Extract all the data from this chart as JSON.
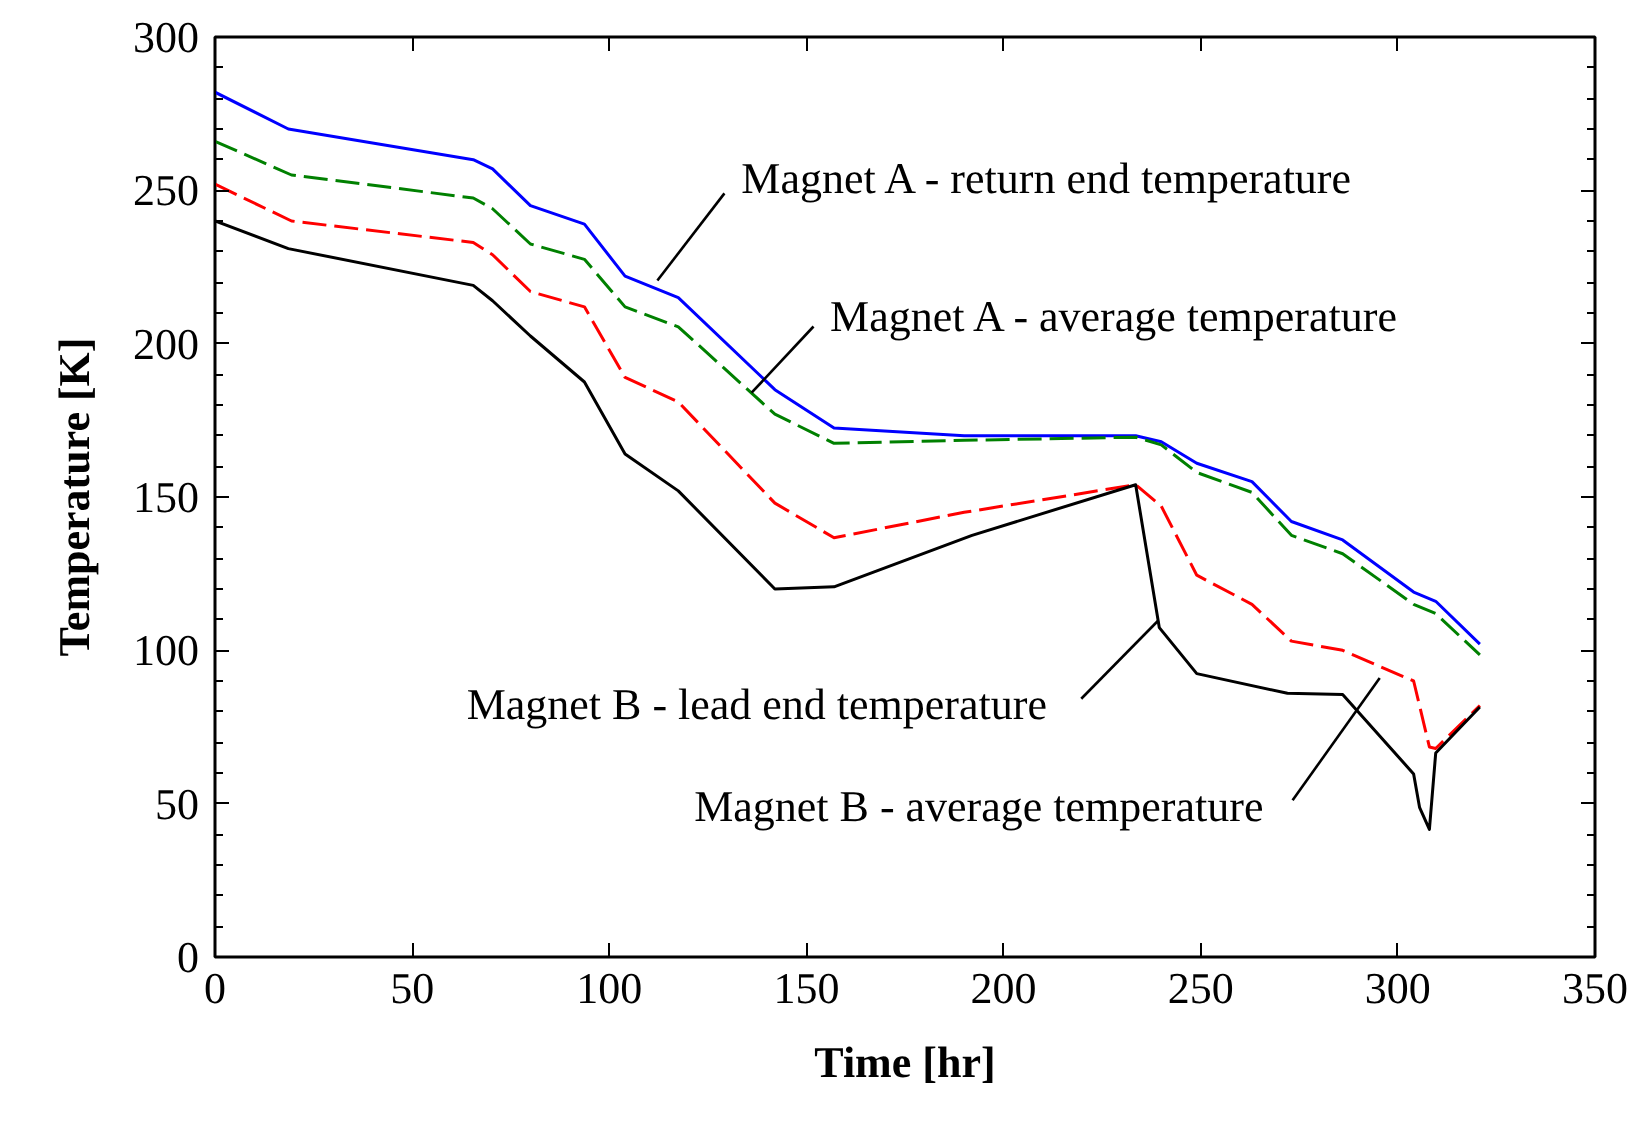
{
  "chart_data": {
    "type": "line",
    "xlabel": "Time [hr]",
    "ylabel": "Temperature [K]",
    "xlim": [
      0,
      350
    ],
    "ylim": [
      0,
      300
    ],
    "xticks": [
      0,
      50,
      100,
      150,
      200,
      250,
      300,
      350
    ],
    "yticks": [
      0,
      50,
      100,
      150,
      200,
      250,
      300
    ],
    "grid": false,
    "marker": "none",
    "series": [
      {
        "color": "#0000ff",
        "line_style": "solid",
        "x": [
          0,
          18.6,
          65.5,
          70.4,
          80,
          93.7,
          104,
          117.5,
          142,
          157,
          190,
          233.5,
          240,
          249,
          263,
          273,
          286,
          304,
          309.6,
          320.8
        ],
        "values": [
          282,
          270,
          260,
          257,
          245,
          239,
          222,
          215,
          185,
          172.5,
          170,
          170,
          168,
          161,
          155,
          142,
          136,
          119,
          116,
          102
        ]
      },
      {
        "color": "#008000",
        "line_style": "dashed",
        "x": [
          0,
          19.4,
          65.5,
          70.4,
          80,
          93.7,
          104,
          117.5,
          142,
          157,
          190,
          233.5,
          240,
          249,
          263,
          273,
          286,
          304,
          309.6,
          320.8
        ],
        "values": [
          266,
          255,
          247.5,
          244,
          232.5,
          227.5,
          212,
          205.5,
          177,
          167.5,
          168.5,
          169.5,
          167,
          158,
          151.5,
          137.5,
          131.5,
          115,
          112,
          98.5
        ]
      },
      {
        "color": "#ff0000",
        "line_style": "dashed",
        "x": [
          0,
          19.4,
          65.5,
          70.4,
          80,
          93.7,
          104,
          117.5,
          142,
          157,
          190,
          233.5,
          240,
          249,
          263,
          273,
          286,
          304,
          308,
          309.6,
          320.8
        ],
        "values": [
          252,
          240,
          233,
          229,
          217,
          212,
          189,
          181,
          148,
          136.7,
          145,
          154,
          147,
          124.5,
          115,
          103,
          100,
          90,
          68.5,
          68,
          82
        ]
      },
      {
        "color": "#000000",
        "line_style": "solid",
        "x": [
          0,
          18.6,
          65.5,
          70.4,
          80,
          93.7,
          104,
          117.5,
          142,
          157,
          192,
          233.5,
          239.5,
          249,
          272,
          286,
          304,
          305.5,
          308,
          309.6,
          320.8
        ],
        "values": [
          240,
          231,
          219,
          214,
          202.5,
          187.5,
          164,
          152,
          120,
          120.7,
          137.5,
          154,
          107.4,
          92.4,
          86,
          85.6,
          59.7,
          48.8,
          41.6,
          66.5,
          81.5
        ]
      }
    ],
    "annotations": [
      {
        "text": "Magnet A - return end temperature",
        "x": 112.2,
        "y": 220.6
      },
      {
        "text": "Magnet A - average temperature",
        "x": 136.1,
        "y": 184
      },
      {
        "text": "Magnet B - lead end temperature",
        "x": 239.3,
        "y": 109.8
      },
      {
        "text": "Magnet B - average temperature",
        "x": 295.4,
        "y": 91
      }
    ]
  }
}
